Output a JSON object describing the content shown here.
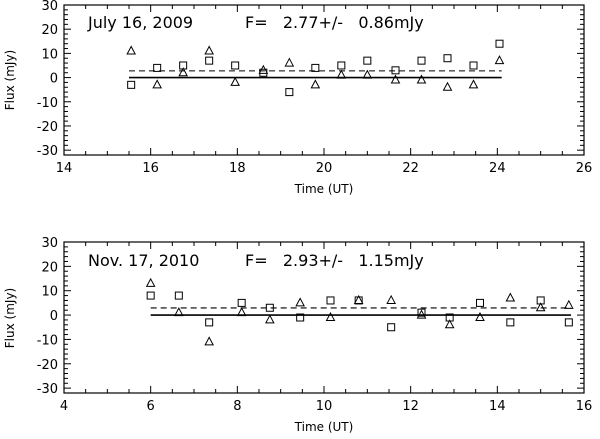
{
  "chart_data": [
    {
      "type": "scatter",
      "annotation": {
        "date": "July 16, 2009",
        "flux": "F=   2.77+/-   0.86mJy"
      },
      "xlabel": "Time (UT)",
      "ylabel": "Flux (mJy)",
      "xlim": [
        14,
        26
      ],
      "ylim": [
        -32,
        30
      ],
      "xticks": [
        "14",
        "16",
        "18",
        "20",
        "22",
        "24",
        "26"
      ],
      "yticks": [
        "-30",
        "-20",
        "-10",
        "0",
        "10",
        "20",
        "30"
      ],
      "xtick_values": [
        14,
        16,
        18,
        20,
        22,
        24,
        26
      ],
      "ytick_values": [
        -30,
        -20,
        -10,
        0,
        10,
        20,
        30
      ],
      "mean_line": {
        "y": 2.77,
        "x": [
          15.5,
          24.1
        ]
      },
      "zero_line": {
        "y": 0,
        "x": [
          15.5,
          24.1
        ]
      },
      "series": [
        {
          "marker": "square",
          "x": [
            15.55,
            16.15,
            16.75,
            17.35,
            17.95,
            18.6,
            19.2,
            19.8,
            20.4,
            21.0,
            21.65,
            22.25,
            22.85,
            23.45,
            24.05
          ],
          "y": [
            -3,
            4,
            5,
            7,
            5,
            2,
            -6,
            4,
            5,
            7,
            3,
            7,
            8,
            5,
            14
          ]
        },
        {
          "marker": "triangle",
          "x": [
            15.55,
            16.15,
            16.75,
            17.35,
            17.95,
            18.6,
            19.2,
            19.8,
            20.4,
            21.0,
            21.65,
            22.25,
            22.85,
            23.45,
            24.05
          ],
          "y": [
            11,
            -3,
            2,
            11,
            -2,
            3,
            6,
            -3,
            1,
            1,
            -1,
            -1,
            -4,
            -3,
            7
          ]
        }
      ]
    },
    {
      "type": "scatter",
      "annotation": {
        "date": "Nov. 17, 2010",
        "flux": "F=   2.93+/-   1.15mJy"
      },
      "xlabel": "Time (UT)",
      "ylabel": "Flux (mJy)",
      "xlim": [
        4,
        16
      ],
      "ylim": [
        -32,
        30
      ],
      "xticks": [
        "4",
        "6",
        "8",
        "10",
        "12",
        "14",
        "16"
      ],
      "yticks": [
        "-30",
        "-20",
        "-10",
        "0",
        "10",
        "20",
        "30"
      ],
      "xtick_values": [
        4,
        6,
        8,
        10,
        12,
        14,
        16
      ],
      "ytick_values": [
        -30,
        -20,
        -10,
        0,
        10,
        20,
        30
      ],
      "mean_line": {
        "y": 2.93,
        "x": [
          6.0,
          15.7
        ]
      },
      "zero_line": {
        "y": 0,
        "x": [
          6.0,
          15.7
        ]
      },
      "series": [
        {
          "marker": "square",
          "x": [
            6.0,
            6.65,
            7.35,
            8.1,
            8.75,
            9.45,
            10.15,
            10.8,
            11.55,
            12.25,
            12.9,
            13.6,
            14.3,
            15.0,
            15.65
          ],
          "y": [
            8,
            8,
            -3,
            5,
            3,
            -1,
            6,
            6,
            -5,
            1,
            -1,
            5,
            -3,
            6,
            -3
          ]
        },
        {
          "marker": "triangle",
          "x": [
            6.0,
            6.65,
            7.35,
            8.1,
            8.75,
            9.45,
            10.15,
            10.8,
            11.55,
            12.25,
            12.9,
            13.6,
            14.3,
            15.0,
            15.65
          ],
          "y": [
            13,
            1,
            -11,
            1,
            -2,
            5,
            -1,
            6,
            6,
            0,
            -4,
            -1,
            7,
            3,
            4
          ]
        }
      ]
    }
  ]
}
